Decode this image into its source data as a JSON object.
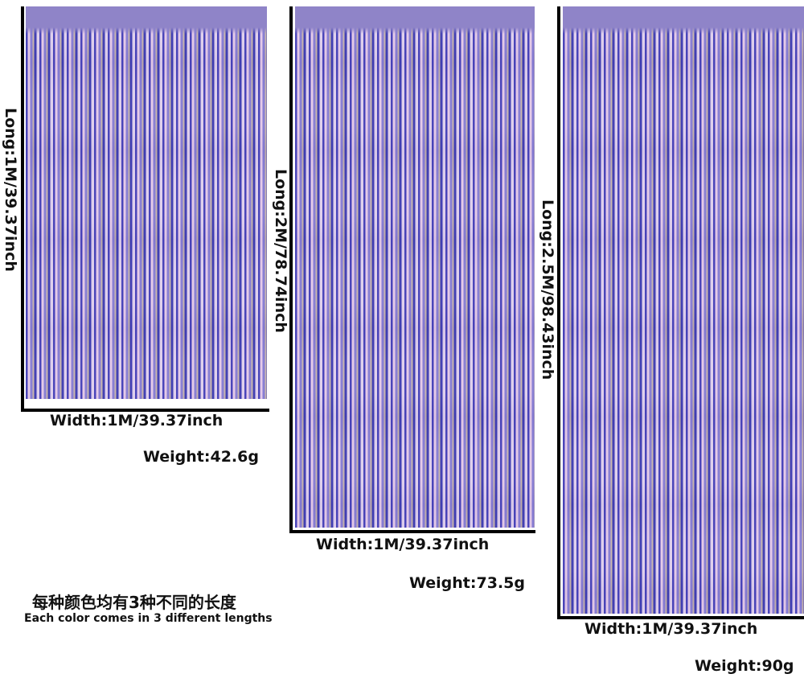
{
  "products": [
    {
      "long_label": "Long:1M/39.37inch",
      "width_label": "Width:1M/39.37inch",
      "weight_label": "Weight:42.6g"
    },
    {
      "long_label": "Long:2M/78.74inch",
      "width_label": "Width:1M/39.37inch",
      "weight_label": "Weight:73.5g"
    },
    {
      "long_label": "Long:2.5M/98.43inch",
      "width_label": "Width:1M/39.37inch",
      "weight_label": "Weight:90g"
    }
  ],
  "note": {
    "chinese": "每种颜色均有3种不同的长度",
    "english": "Each color comes in 3 different lengths"
  },
  "colors": {
    "curtain_base": "#a99fd6",
    "frame": "#000000"
  }
}
